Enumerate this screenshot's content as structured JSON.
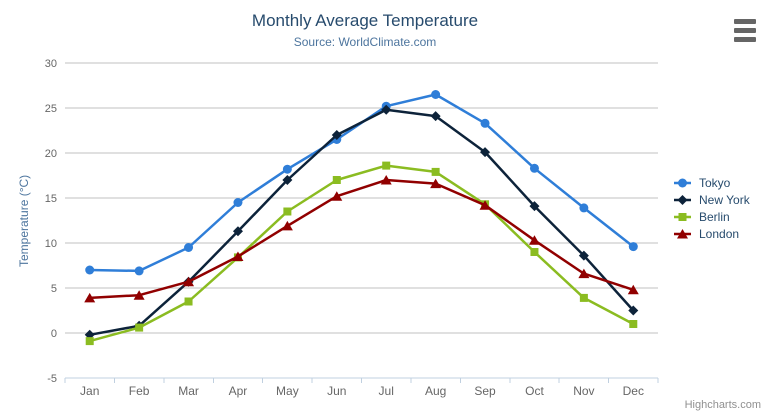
{
  "chart": {
    "title": "Monthly Average Temperature",
    "subtitle": "Source: WorldClimate.com",
    "credits": "Highcharts.com",
    "menu_icon": "hamburger-icon"
  },
  "chart_data": {
    "type": "line",
    "title": "Monthly Average Temperature",
    "subtitle": "Source: WorldClimate.com",
    "xlabel": "",
    "ylabel": "Temperature (°C)",
    "ylim": [
      -5,
      30
    ],
    "y_ticks": [
      -5,
      0,
      5,
      10,
      15,
      20,
      25,
      30
    ],
    "grid": true,
    "legend_position": "right",
    "categories": [
      "Jan",
      "Feb",
      "Mar",
      "Apr",
      "May",
      "Jun",
      "Jul",
      "Aug",
      "Sep",
      "Oct",
      "Nov",
      "Dec"
    ],
    "series": [
      {
        "name": "Tokyo",
        "color": "#2f7ed8",
        "marker": "circle",
        "values": [
          7.0,
          6.9,
          9.5,
          14.5,
          18.2,
          21.5,
          25.2,
          26.5,
          23.3,
          18.3,
          13.9,
          9.6
        ]
      },
      {
        "name": "New York",
        "color": "#0d233a",
        "marker": "diamond",
        "values": [
          -0.2,
          0.8,
          5.7,
          11.3,
          17.0,
          22.0,
          24.8,
          24.1,
          20.1,
          14.1,
          8.6,
          2.5
        ]
      },
      {
        "name": "Berlin",
        "color": "#8bbc21",
        "marker": "square",
        "values": [
          -0.9,
          0.6,
          3.5,
          8.4,
          13.5,
          17.0,
          18.6,
          17.9,
          14.3,
          9.0,
          3.9,
          1.0
        ]
      },
      {
        "name": "London",
        "color": "#910000",
        "marker": "triangle",
        "values": [
          3.9,
          4.2,
          5.7,
          8.5,
          11.9,
          15.2,
          17.0,
          16.6,
          14.2,
          10.3,
          6.6,
          4.8
        ]
      }
    ],
    "colors": {
      "tick_label": "#666666",
      "grid_line": "#c0c0c0",
      "axis_line": "#c0d0e0",
      "axis_title": "#4d759e",
      "title": "#274b6d",
      "subtitle": "#4d759e",
      "legend_text": "#274b6d",
      "credits_text": "#909090"
    }
  }
}
